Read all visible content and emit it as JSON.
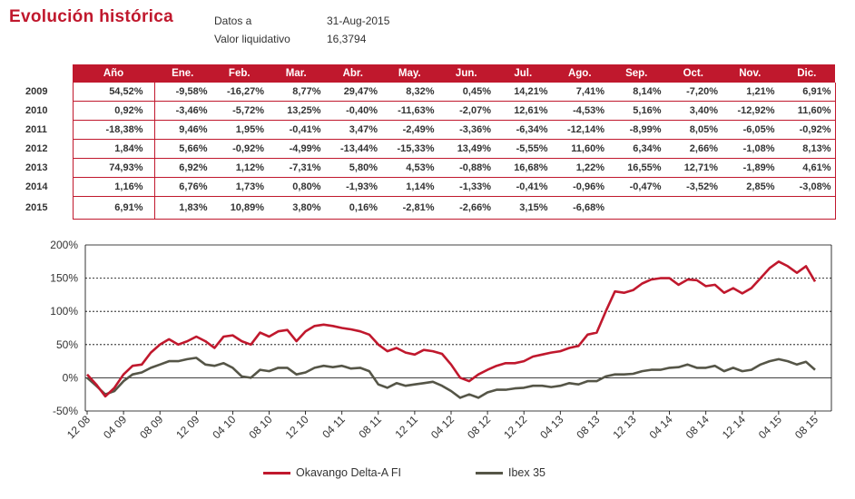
{
  "header": {
    "title": "Evolución histórica",
    "datos_label": "Datos a",
    "datos_value": "31-Aug-2015",
    "valor_label": "Valor liquidativo",
    "valor_value": "16,3794"
  },
  "table": {
    "columns": [
      "Año",
      "Ene.",
      "Feb.",
      "Mar.",
      "Abr.",
      "May.",
      "Jun.",
      "Jul.",
      "Ago.",
      "Sep.",
      "Oct.",
      "Nov.",
      "Dic."
    ],
    "rows": [
      {
        "year": "2009",
        "values": [
          "54,52%",
          "-9,58%",
          "-16,27%",
          "8,77%",
          "29,47%",
          "8,32%",
          "0,45%",
          "14,21%",
          "7,41%",
          "8,14%",
          "-7,20%",
          "1,21%",
          "6,91%"
        ]
      },
      {
        "year": "2010",
        "values": [
          "0,92%",
          "-3,46%",
          "-5,72%",
          "13,25%",
          "-0,40%",
          "-11,63%",
          "-2,07%",
          "12,61%",
          "-4,53%",
          "5,16%",
          "3,40%",
          "-12,92%",
          "11,60%"
        ]
      },
      {
        "year": "2011",
        "values": [
          "-18,38%",
          "9,46%",
          "1,95%",
          "-0,41%",
          "3,47%",
          "-2,49%",
          "-3,36%",
          "-6,34%",
          "-12,14%",
          "-8,99%",
          "8,05%",
          "-6,05%",
          "-0,92%"
        ]
      },
      {
        "year": "2012",
        "values": [
          "1,84%",
          "5,66%",
          "-0,92%",
          "-4,99%",
          "-13,44%",
          "-15,33%",
          "13,49%",
          "-5,55%",
          "11,60%",
          "6,34%",
          "2,66%",
          "-1,08%",
          "8,13%"
        ]
      },
      {
        "year": "2013",
        "values": [
          "74,93%",
          "6,92%",
          "1,12%",
          "-7,31%",
          "5,80%",
          "4,53%",
          "-0,88%",
          "16,68%",
          "1,22%",
          "16,55%",
          "12,71%",
          "-1,89%",
          "4,61%"
        ]
      },
      {
        "year": "2014",
        "values": [
          "1,16%",
          "6,76%",
          "1,73%",
          "0,80%",
          "-1,93%",
          "1,14%",
          "-1,33%",
          "-0,41%",
          "-0,96%",
          "-0,47%",
          "-3,52%",
          "2,85%",
          "-3,08%"
        ]
      },
      {
        "year": "2015",
        "values": [
          "6,91%",
          "1,83%",
          "10,89%",
          "3,80%",
          "0,16%",
          "-2,81%",
          "-2,66%",
          "3,15%",
          "-6,68%",
          "",
          "",
          "",
          ""
        ]
      }
    ]
  },
  "chart_data": {
    "type": "line",
    "y_ticks": [
      "200%",
      "150%",
      "100%",
      "50%",
      "0%",
      "-50%"
    ],
    "y_tick_values": [
      200,
      150,
      100,
      50,
      0,
      -50
    ],
    "ylim": [
      -50,
      200
    ],
    "x_ticks": [
      "12 08",
      "04 09",
      "08 09",
      "12 09",
      "04 10",
      "08 10",
      "12 10",
      "04 11",
      "08 11",
      "12 11",
      "04 12",
      "08 12",
      "12 12",
      "04 13",
      "08 13",
      "12 13",
      "04 14",
      "08 14",
      "12 14",
      "04 15",
      "08 15"
    ],
    "grid": true,
    "legend_position": "bottom",
    "series": [
      {
        "name": "Okavango Delta-A FI",
        "color": "#c0182d",
        "points": [
          [
            "12 08",
            5
          ],
          [
            "01 09",
            -10
          ],
          [
            "02 09",
            -28
          ],
          [
            "03 09",
            -15
          ],
          [
            "04 09",
            5
          ],
          [
            "05 09",
            18
          ],
          [
            "06 09",
            20
          ],
          [
            "07 09",
            38
          ],
          [
            "08 09",
            50
          ],
          [
            "09 09",
            58
          ],
          [
            "10 09",
            50
          ],
          [
            "11 09",
            55
          ],
          [
            "12 09",
            62
          ],
          [
            "01 10",
            55
          ],
          [
            "02 10",
            45
          ],
          [
            "03 10",
            62
          ],
          [
            "04 10",
            64
          ],
          [
            "05 10",
            55
          ],
          [
            "06 10",
            50
          ],
          [
            "07 10",
            68
          ],
          [
            "08 10",
            62
          ],
          [
            "09 10",
            70
          ],
          [
            "10 10",
            72
          ],
          [
            "11 10",
            55
          ],
          [
            "12 10",
            70
          ],
          [
            "01 11",
            78
          ],
          [
            "02 11",
            80
          ],
          [
            "03 11",
            78
          ],
          [
            "04 11",
            75
          ],
          [
            "05 11",
            73
          ],
          [
            "06 11",
            70
          ],
          [
            "07 11",
            65
          ],
          [
            "08 11",
            50
          ],
          [
            "09 11",
            40
          ],
          [
            "10 11",
            45
          ],
          [
            "11 11",
            38
          ],
          [
            "12 11",
            35
          ],
          [
            "01 12",
            42
          ],
          [
            "02 12",
            40
          ],
          [
            "03 12",
            36
          ],
          [
            "04 12",
            20
          ],
          [
            "05 12",
            0
          ],
          [
            "06 12",
            -5
          ],
          [
            "07 12",
            5
          ],
          [
            "08 12",
            12
          ],
          [
            "09 12",
            18
          ],
          [
            "10 12",
            22
          ],
          [
            "11 12",
            22
          ],
          [
            "12 12",
            25
          ],
          [
            "01 13",
            32
          ],
          [
            "02 13",
            35
          ],
          [
            "03 13",
            38
          ],
          [
            "04 13",
            40
          ],
          [
            "05 13",
            45
          ],
          [
            "06 13",
            48
          ],
          [
            "07 13",
            65
          ],
          [
            "08 13",
            68
          ],
          [
            "09 13",
            100
          ],
          [
            "10 13",
            130
          ],
          [
            "11 13",
            128
          ],
          [
            "12 13",
            132
          ],
          [
            "01 14",
            142
          ],
          [
            "02 14",
            148
          ],
          [
            "03 14",
            150
          ],
          [
            "04 14",
            150
          ],
          [
            "05 14",
            140
          ],
          [
            "06 14",
            148
          ],
          [
            "07 14",
            147
          ],
          [
            "08 14",
            138
          ],
          [
            "09 14",
            140
          ],
          [
            "10 14",
            128
          ],
          [
            "11 14",
            135
          ],
          [
            "12 14",
            127
          ],
          [
            "01 15",
            135
          ],
          [
            "02 15",
            150
          ],
          [
            "03 15",
            165
          ],
          [
            "04 15",
            175
          ],
          [
            "05 15",
            168
          ],
          [
            "06 15",
            158
          ],
          [
            "07 15",
            168
          ],
          [
            "08 15",
            145
          ]
        ]
      },
      {
        "name": "Ibex 35",
        "color": "#555547",
        "points": [
          [
            "12 08",
            0
          ],
          [
            "01 09",
            -12
          ],
          [
            "02 09",
            -25
          ],
          [
            "03 09",
            -20
          ],
          [
            "04 09",
            -5
          ],
          [
            "05 09",
            5
          ],
          [
            "06 09",
            8
          ],
          [
            "07 09",
            15
          ],
          [
            "08 09",
            20
          ],
          [
            "09 09",
            25
          ],
          [
            "10 09",
            25
          ],
          [
            "11 09",
            28
          ],
          [
            "12 09",
            30
          ],
          [
            "01 10",
            20
          ],
          [
            "02 10",
            18
          ],
          [
            "03 10",
            22
          ],
          [
            "04 10",
            15
          ],
          [
            "05 10",
            2
          ],
          [
            "06 10",
            0
          ],
          [
            "07 10",
            12
          ],
          [
            "08 10",
            10
          ],
          [
            "09 10",
            15
          ],
          [
            "10 10",
            15
          ],
          [
            "11 10",
            5
          ],
          [
            "12 10",
            8
          ],
          [
            "01 11",
            15
          ],
          [
            "02 11",
            18
          ],
          [
            "03 11",
            16
          ],
          [
            "04 11",
            18
          ],
          [
            "05 11",
            14
          ],
          [
            "06 11",
            15
          ],
          [
            "07 11",
            10
          ],
          [
            "08 11",
            -10
          ],
          [
            "09 11",
            -15
          ],
          [
            "10 11",
            -8
          ],
          [
            "11 11",
            -12
          ],
          [
            "12 11",
            -10
          ],
          [
            "01 12",
            -8
          ],
          [
            "02 12",
            -6
          ],
          [
            "03 12",
            -12
          ],
          [
            "04 12",
            -20
          ],
          [
            "05 12",
            -30
          ],
          [
            "06 12",
            -25
          ],
          [
            "07 12",
            -30
          ],
          [
            "08 12",
            -22
          ],
          [
            "09 12",
            -18
          ],
          [
            "10 12",
            -18
          ],
          [
            "11 12",
            -16
          ],
          [
            "12 12",
            -15
          ],
          [
            "01 13",
            -12
          ],
          [
            "02 13",
            -12
          ],
          [
            "03 13",
            -14
          ],
          [
            "04 13",
            -12
          ],
          [
            "05 13",
            -8
          ],
          [
            "06 13",
            -10
          ],
          [
            "07 13",
            -5
          ],
          [
            "08 13",
            -5
          ],
          [
            "09 13",
            2
          ],
          [
            "10 13",
            5
          ],
          [
            "11 13",
            5
          ],
          [
            "12 13",
            6
          ],
          [
            "01 14",
            10
          ],
          [
            "02 14",
            12
          ],
          [
            "03 14",
            12
          ],
          [
            "04 14",
            15
          ],
          [
            "05 14",
            16
          ],
          [
            "06 14",
            20
          ],
          [
            "07 14",
            15
          ],
          [
            "08 14",
            15
          ],
          [
            "09 14",
            18
          ],
          [
            "10 14",
            10
          ],
          [
            "11 14",
            15
          ],
          [
            "12 14",
            10
          ],
          [
            "01 15",
            12
          ],
          [
            "02 15",
            20
          ],
          [
            "03 15",
            25
          ],
          [
            "04 15",
            28
          ],
          [
            "05 15",
            25
          ],
          [
            "06 15",
            20
          ],
          [
            "07 15",
            24
          ],
          [
            "08 15",
            12
          ]
        ]
      }
    ]
  }
}
